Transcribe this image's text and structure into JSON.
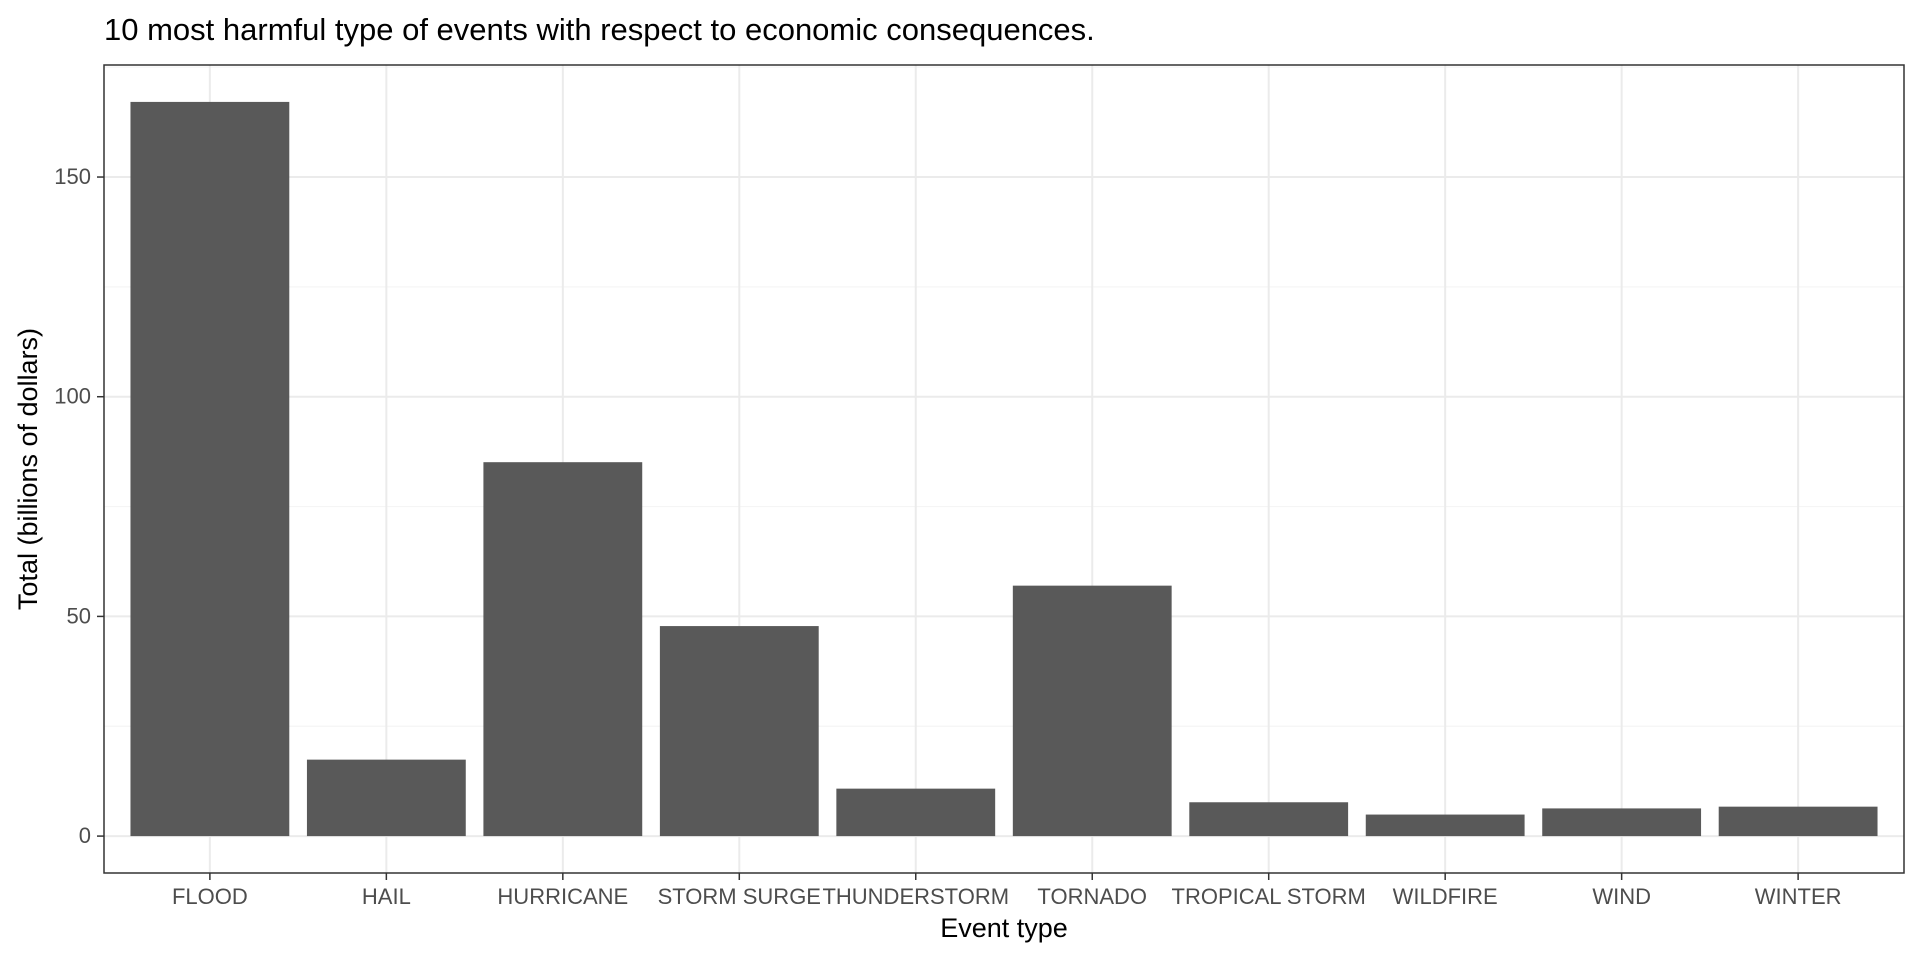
{
  "chart_data": {
    "type": "bar",
    "title": "10 most harmful type of events with respect to economic consequences.",
    "xlabel": "Event type",
    "ylabel": "Total (billions of dollars)",
    "categories": [
      "FLOOD",
      "HAIL",
      "HURRICANE",
      "STORM SURGE",
      "THUNDERSTORM",
      "TORNADO",
      "TROPICAL STORM",
      "WILDFIRE",
      "WIND",
      "WINTER"
    ],
    "values": [
      167.1,
      17.4,
      85.1,
      47.8,
      10.8,
      57.0,
      7.7,
      4.9,
      6.3,
      6.7
    ],
    "ylim": [
      -8.4,
      175.5
    ],
    "yticks": [
      0,
      50,
      100,
      150
    ],
    "ytick_labels": [
      "0",
      "50",
      "100",
      "150"
    ],
    "grid": true,
    "legend": "none",
    "colors": {
      "bar": "#595959",
      "panel_background": "#ffffff",
      "panel_border": "#333333",
      "grid_major": "#ebebeb",
      "grid_minor": "#f5f5f5",
      "tick": "#333333"
    }
  }
}
